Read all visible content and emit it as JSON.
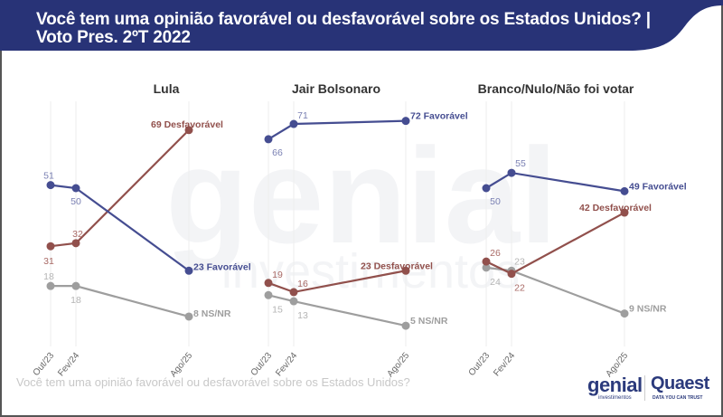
{
  "header": {
    "title_line1": "Você tem uma opinião favorável ou desfavorável sobre os Estados Unidos? |",
    "title_line2": "Voto Pres. 2ºT 2022"
  },
  "footnote": "Você tem uma opinião favorável ou desfavorável sobre os Estados Unidos?",
  "logos": {
    "genial": "genial",
    "genial_sub": "investimentos",
    "quaest": "Quaest",
    "quaest_sub": "DATA YOU CAN TRUST"
  },
  "watermark": {
    "line1": "genial",
    "line2": "investimentos"
  },
  "colors": {
    "header_bg": "#283377",
    "favoravel": "#454d91",
    "desfavoravel": "#91504c",
    "nsnr": "#9e9e9e",
    "grid": "#eeeeee"
  },
  "chart_data": [
    {
      "type": "line",
      "title": "Lula",
      "categories": [
        "Out/23",
        "Fev/24",
        "Ago/25"
      ],
      "ylim": [
        0,
        75
      ],
      "series": [
        {
          "name": "Favorável",
          "key": "favoravel",
          "values": [
            51,
            50,
            23
          ]
        },
        {
          "name": "Desfavorável",
          "key": "desfavoravel",
          "values": [
            31,
            32,
            69
          ]
        },
        {
          "name": "NS/NR",
          "key": "nsnr",
          "values": [
            18,
            18,
            8
          ]
        }
      ]
    },
    {
      "type": "line",
      "title": "Jair Bolsonaro",
      "categories": [
        "Out/23",
        "Fev/24",
        "Ago/25"
      ],
      "ylim": [
        0,
        75
      ],
      "series": [
        {
          "name": "Favorável",
          "key": "favoravel",
          "values": [
            66,
            71,
            72
          ]
        },
        {
          "name": "Desfavorável",
          "key": "desfavoravel",
          "values": [
            19,
            16,
            23
          ]
        },
        {
          "name": "NS/NR",
          "key": "nsnr",
          "values": [
            15,
            13,
            5
          ]
        }
      ]
    },
    {
      "type": "line",
      "title": "Branco/Nulo/Não foi votar",
      "categories": [
        "Out/23",
        "Fev/24",
        "Ago/25"
      ],
      "ylim": [
        0,
        75
      ],
      "series": [
        {
          "name": "Favorável",
          "key": "favoravel",
          "values": [
            50,
            55,
            49
          ]
        },
        {
          "name": "Desfavorável",
          "key": "desfavoravel",
          "values": [
            26,
            22,
            42
          ]
        },
        {
          "name": "NS/NR",
          "key": "nsnr",
          "values": [
            24,
            23,
            9
          ]
        }
      ]
    }
  ]
}
